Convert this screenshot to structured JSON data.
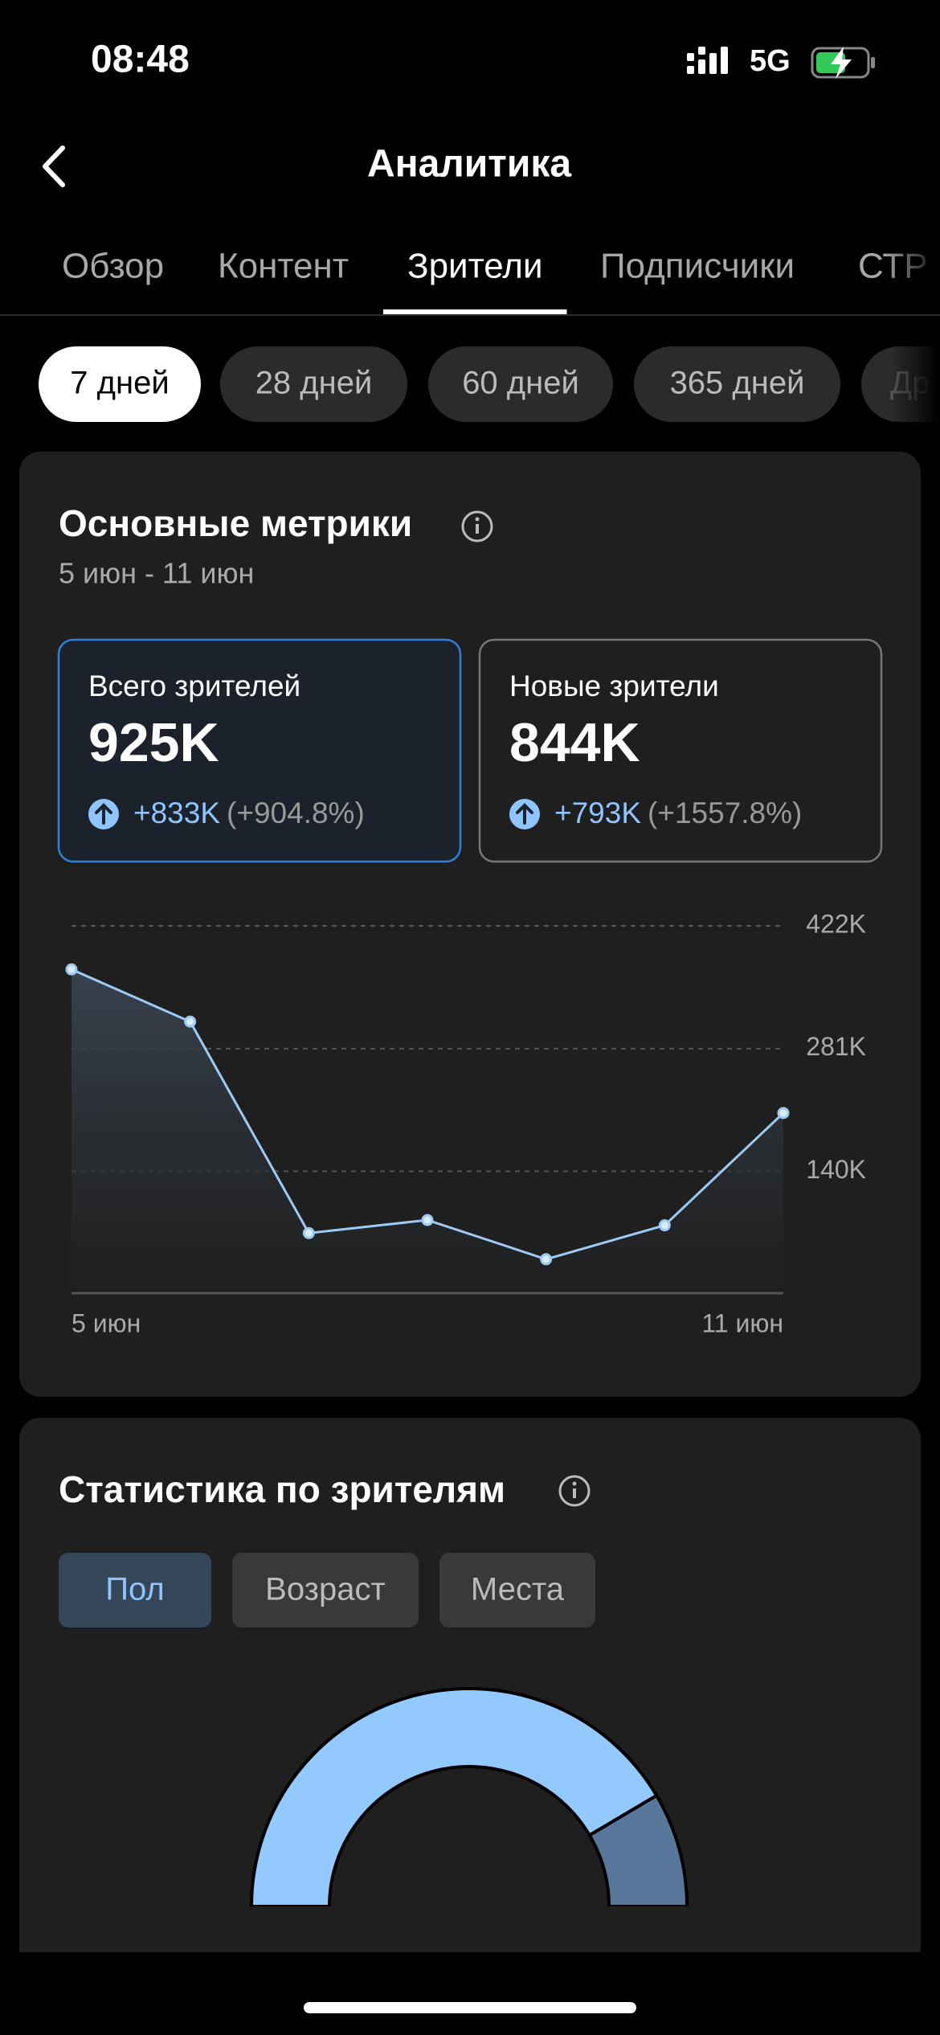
{
  "status_bar": {
    "time": "08:48",
    "network": "5G"
  },
  "header": {
    "title": "Аналитика"
  },
  "tabs": {
    "items": [
      "Обзор",
      "Контент",
      "Зрители",
      "Подписчики",
      "СТР"
    ],
    "active": 2
  },
  "periods": {
    "items": [
      "7 дней",
      "28 дней",
      "60 дней",
      "365 дней",
      "Др"
    ],
    "active": 0
  },
  "metrics_card": {
    "title": "Основные метрики",
    "date_range": "5 июн - 11 июн",
    "selected": 0,
    "metrics": [
      {
        "label": "Всего зрителей",
        "value": "925K",
        "change": "+833K",
        "change_percent": "(+904.8%)"
      },
      {
        "label": "Новые зрители",
        "value": "844K",
        "change": "+793K",
        "change_percent": "(+1557.8%)"
      }
    ]
  },
  "audience_card": {
    "title": "Статистика по зрителям",
    "filters": [
      "Пол",
      "Возраст",
      "Места"
    ],
    "active": 0
  },
  "chart_data": [
    {
      "type": "line",
      "categories": [
        "5 июн",
        null,
        null,
        null,
        null,
        null,
        "11 июн"
      ],
      "values": [
        372000,
        312000,
        69000,
        84000,
        39000,
        78000,
        207000
      ],
      "color": "#9ccbf5",
      "ylim": [
        0,
        422000
      ],
      "yticks": [
        {
          "value": 140000,
          "label": "140K"
        },
        {
          "value": 281000,
          "label": "281K"
        },
        {
          "value": 422000,
          "label": "422K"
        }
      ],
      "grid": true
    },
    {
      "type": "pie",
      "values": [
        83,
        17
      ],
      "colors": [
        "#92c9ff",
        "#58779a"
      ]
    }
  ]
}
